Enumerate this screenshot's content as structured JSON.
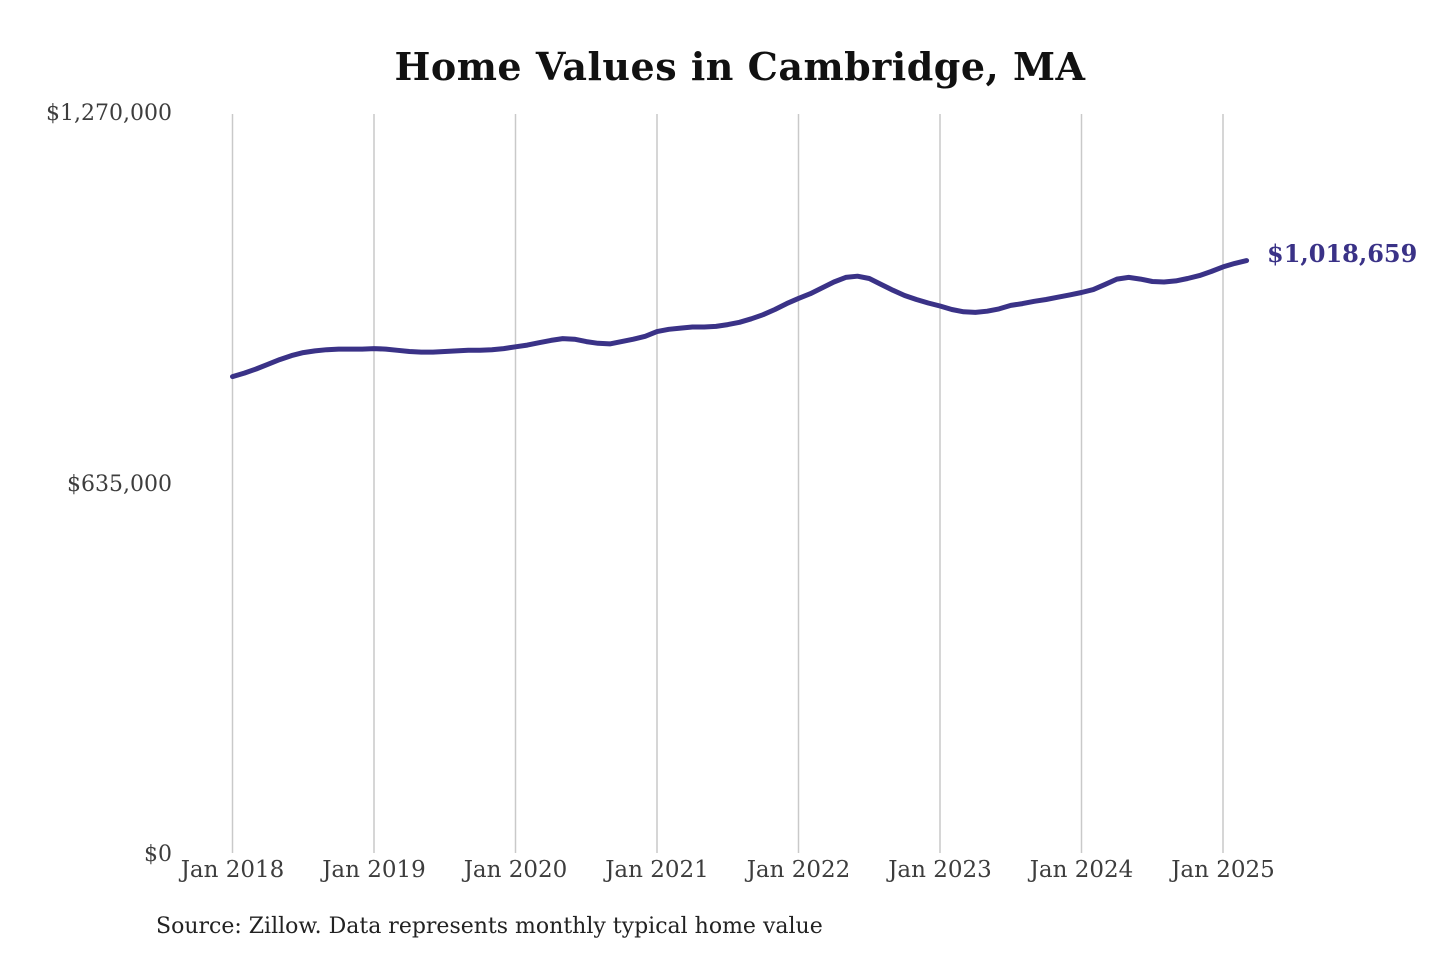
{
  "chart": {
    "title": "Home Values in Cambridge, MA",
    "source": "Source: Zillow. Data represents monthly typical home value",
    "end_label": "$1,018,659",
    "line_color": "#3a3287",
    "grid_color": "#c9c9c9",
    "tick_color": "#3d3d3d"
  },
  "chart_data": {
    "type": "line",
    "title": "Home Values in Cambridge, MA",
    "xlabel": "",
    "ylabel": "",
    "x_tick_labels": [
      "Jan 2018",
      "Jan 2019",
      "Jan 2020",
      "Jan 2021",
      "Jan 2022",
      "Jan 2023",
      "Jan 2024",
      "Jan 2025"
    ],
    "y_ticks": [
      {
        "label": "$1,270,000",
        "value": 1270000
      },
      {
        "label": "$635,000",
        "value": 635000
      },
      {
        "label": "$0",
        "value": 0
      }
    ],
    "ylim": [
      0,
      1270000
    ],
    "grid": "vertical-only",
    "legend": "none",
    "x_start_month": "2018-01",
    "x_end_month": "2025-03",
    "end_value": 1018659,
    "end_value_label": "$1,018,659",
    "series": [
      {
        "name": "Typical home value (USD, monthly)",
        "values": [
          820000,
          826000,
          833000,
          841000,
          849000,
          856000,
          861000,
          864000,
          866000,
          867000,
          867000,
          867000,
          868000,
          867000,
          865000,
          863000,
          862000,
          862000,
          863000,
          864000,
          865000,
          865000,
          866000,
          868000,
          871000,
          874000,
          878000,
          882000,
          885000,
          884000,
          880000,
          877000,
          876000,
          880000,
          884000,
          889000,
          897000,
          901000,
          903000,
          905000,
          905000,
          906000,
          909000,
          913000,
          919000,
          926000,
          935000,
          945000,
          954000,
          962000,
          972000,
          982000,
          990000,
          992000,
          988000,
          978000,
          968000,
          959000,
          952000,
          946000,
          941000,
          935000,
          931000,
          930000,
          932000,
          936000,
          942000,
          945000,
          949000,
          952000,
          956000,
          960000,
          964000,
          969000,
          978000,
          987000,
          990000,
          987000,
          983000,
          982000,
          984000,
          988000,
          993000,
          1000000,
          1008000,
          1014000,
          1018659
        ]
      }
    ]
  }
}
